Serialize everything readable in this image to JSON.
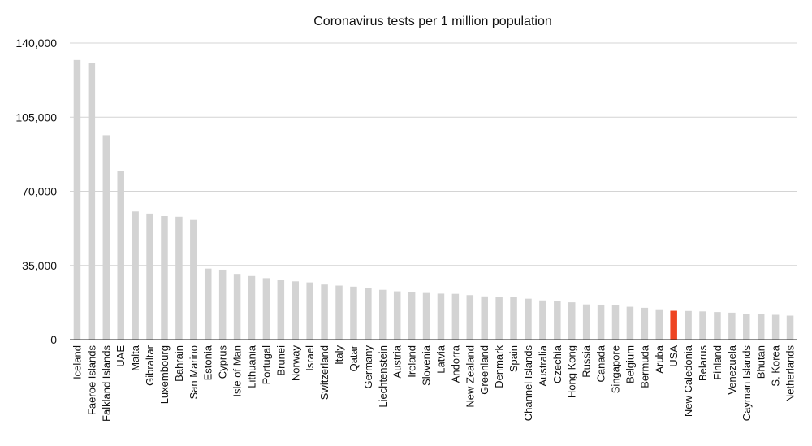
{
  "chart_data": {
    "type": "bar",
    "title": "Coronavirus tests per 1 million population",
    "xlabel": "",
    "ylabel": "",
    "ylim": [
      0,
      140000
    ],
    "yticks": [
      0,
      35000,
      70000,
      105000,
      140000
    ],
    "ytick_labels": [
      "0",
      "35,000",
      "70,000",
      "105,000",
      "140,000"
    ],
    "grid": true,
    "legend": "none",
    "bar_color": "#d3d3d3",
    "highlight_color": "#ee4422",
    "highlight_category": "USA",
    "categories": [
      "Iceland",
      "Faeroe Islands",
      "Falkland Islands",
      "UAE",
      "Malta",
      "Gibraltar",
      "Luxembourg",
      "Bahrain",
      "San Marino",
      "Estonia",
      "Cyprus",
      "Isle of Man",
      "Lithuania",
      "Portugal",
      "Brunei",
      "Norway",
      "Israel",
      "Switzerland",
      "Italy",
      "Qatar",
      "Germany",
      "Liechtenstein",
      "Austria",
      "Ireland",
      "Slovenia",
      "Latvia",
      "Andorra",
      "New Zealand",
      "Greenland",
      "Denmark",
      "Spain",
      "Channel Islands",
      "Australia",
      "Czechia",
      "Hong Kong",
      "Russia",
      "Canada",
      "Singapore",
      "Belgium",
      "Bermuda",
      "Aruba",
      "USA",
      "New Caledonia",
      "Belarus",
      "Finland",
      "Venezuela",
      "Cayman Islands",
      "Bhutan",
      "S. Korea",
      "Netherlands"
    ],
    "values": [
      132000,
      130500,
      96500,
      79500,
      60500,
      59500,
      58300,
      58000,
      56500,
      33500,
      33000,
      31000,
      30000,
      29000,
      28000,
      27500,
      27000,
      26000,
      25500,
      25000,
      24300,
      23500,
      22800,
      22600,
      22000,
      21700,
      21600,
      21000,
      20400,
      20100,
      20000,
      19300,
      18500,
      18300,
      17600,
      16600,
      16500,
      16300,
      15500,
      15000,
      14300,
      13600,
      13500,
      13300,
      13000,
      12700,
      12200,
      12000,
      11700,
      11300
    ]
  }
}
